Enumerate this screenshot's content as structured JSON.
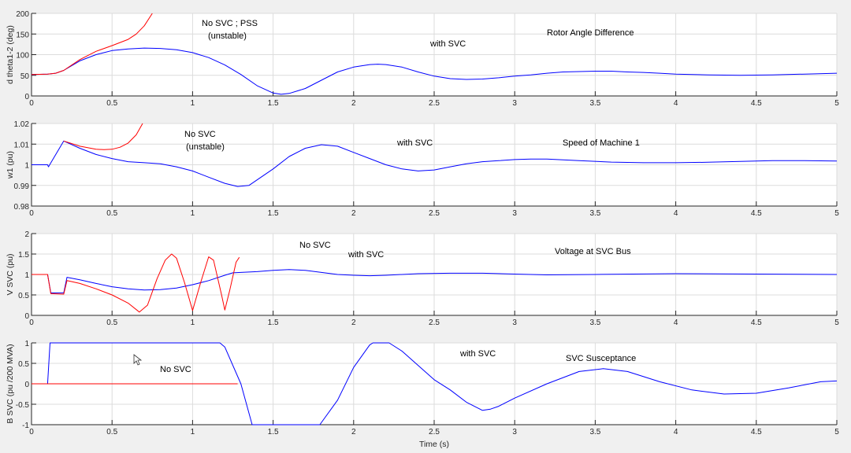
{
  "chart_data": [
    {
      "type": "line",
      "ylabel": "d theta1-2 (deg)",
      "xlim": [
        0,
        5
      ],
      "ylim": [
        0,
        200
      ],
      "xticks": [
        "0",
        "0.5",
        "1",
        "1.5",
        "2",
        "2.5",
        "3",
        "3.5",
        "4",
        "4.5",
        "5"
      ],
      "yticks": [
        "0",
        "50",
        "100",
        "150",
        "200"
      ],
      "grid": true,
      "annotations": [
        "No SVC ;  PSS",
        "(unstable)",
        "with SVC",
        "Rotor Angle Difference"
      ],
      "series": [
        {
          "color": "#0000ff",
          "x": [
            0,
            0.1,
            0.15,
            0.2,
            0.3,
            0.4,
            0.5,
            0.6,
            0.7,
            0.8,
            0.9,
            1.0,
            1.1,
            1.2,
            1.3,
            1.4,
            1.5,
            1.55,
            1.6,
            1.7,
            1.8,
            1.9,
            2.0,
            2.1,
            2.15,
            2.2,
            2.3,
            2.4,
            2.5,
            2.6,
            2.7,
            2.8,
            2.9,
            3.0,
            3.1,
            3.2,
            3.3,
            3.4,
            3.5,
            3.6,
            3.7,
            3.8,
            3.9,
            4.0,
            4.2,
            4.4,
            4.6,
            4.8,
            5.0
          ],
          "y": [
            52,
            53,
            55,
            62,
            85,
            100,
            110,
            114,
            116,
            115,
            112,
            105,
            93,
            75,
            52,
            25,
            7,
            4,
            6,
            18,
            38,
            58,
            70,
            76,
            77,
            76,
            70,
            58,
            48,
            42,
            40,
            41,
            44,
            48,
            51,
            55,
            58,
            59,
            60,
            60,
            58,
            57,
            55,
            53,
            51,
            50,
            51,
            53,
            55
          ]
        },
        {
          "color": "#ff0000",
          "x": [
            0,
            0.1,
            0.15,
            0.2,
            0.3,
            0.4,
            0.5,
            0.6,
            0.65,
            0.7,
            0.75
          ],
          "y": [
            52,
            53,
            55,
            62,
            88,
            108,
            122,
            137,
            150,
            170,
            200
          ]
        }
      ]
    },
    {
      "type": "line",
      "ylabel": "w1 (pu)",
      "xlim": [
        0,
        5
      ],
      "ylim": [
        0.98,
        1.02
      ],
      "xticks": [
        "0",
        "0.5",
        "1",
        "1.5",
        "2",
        "2.5",
        "3",
        "3.5",
        "4",
        "4.5",
        "5"
      ],
      "yticks": [
        "0.98",
        "0.99",
        "1",
        "1.01",
        "1.02"
      ],
      "grid": true,
      "annotations": [
        "No SVC",
        "(unstable)",
        "with SVC",
        "Speed of Machine 1"
      ],
      "series": [
        {
          "color": "#0000ff",
          "x": [
            0,
            0.1,
            0.105,
            0.2,
            0.3,
            0.4,
            0.5,
            0.6,
            0.7,
            0.8,
            0.9,
            1.0,
            1.1,
            1.2,
            1.28,
            1.35,
            1.5,
            1.6,
            1.7,
            1.8,
            1.9,
            2.0,
            2.1,
            2.2,
            2.3,
            2.4,
            2.5,
            2.6,
            2.7,
            2.8,
            2.9,
            3.0,
            3.1,
            3.2,
            3.4,
            3.6,
            3.8,
            4.0,
            4.2,
            4.4,
            4.6,
            4.8,
            5.0
          ],
          "y": [
            1.0,
            1.0,
            0.999,
            1.0115,
            1.008,
            1.005,
            1.003,
            1.0015,
            1.001,
            1.0005,
            0.999,
            0.997,
            0.994,
            0.991,
            0.9895,
            0.99,
            0.998,
            1.004,
            1.008,
            1.0097,
            1.009,
            1.006,
            1.003,
            1.0,
            0.998,
            0.997,
            0.9975,
            0.999,
            1.0005,
            1.0015,
            1.002,
            1.0025,
            1.0028,
            1.0028,
            1.002,
            1.0013,
            1.001,
            1.001,
            1.0012,
            1.0016,
            1.002,
            1.002,
            1.0018
          ]
        },
        {
          "color": "#ff0000",
          "x": [
            0.2,
            0.3,
            0.4,
            0.45,
            0.5,
            0.55,
            0.6,
            0.65,
            0.69
          ],
          "y": [
            1.0115,
            1.009,
            1.0075,
            1.0073,
            1.0075,
            1.0085,
            1.0105,
            1.0145,
            1.02
          ]
        }
      ]
    },
    {
      "type": "line",
      "ylabel": "V SVC (pu)",
      "xlim": [
        0,
        5
      ],
      "ylim": [
        0,
        2
      ],
      "xticks": [
        "0",
        "0.5",
        "1",
        "1.5",
        "2",
        "2.5",
        "3",
        "3.5",
        "4",
        "4.5",
        "5"
      ],
      "yticks": [
        "0",
        "0.5",
        "1",
        "1.5",
        "2"
      ],
      "grid": true,
      "annotations": [
        "No SVC",
        "with SVC",
        "Voltage at  SVC Bus"
      ],
      "series": [
        {
          "color": "#0000ff",
          "x": [
            0,
            0.1,
            0.12,
            0.2,
            0.22,
            0.3,
            0.4,
            0.5,
            0.6,
            0.7,
            0.8,
            0.9,
            1.0,
            1.1,
            1.2,
            1.25,
            1.3,
            1.4,
            1.5,
            1.6,
            1.7,
            1.8,
            1.9,
            2.0,
            2.1,
            2.2,
            2.4,
            2.6,
            2.8,
            3.0,
            3.2,
            3.5,
            4.0,
            4.5,
            5.0
          ],
          "y": [
            1.0,
            1.0,
            0.55,
            0.55,
            0.93,
            0.87,
            0.78,
            0.7,
            0.65,
            0.62,
            0.63,
            0.67,
            0.75,
            0.85,
            0.98,
            1.04,
            1.05,
            1.07,
            1.1,
            1.12,
            1.1,
            1.05,
            1.0,
            0.98,
            0.97,
            0.98,
            1.02,
            1.03,
            1.03,
            1.01,
            0.99,
            1.0,
            1.02,
            1.01,
            1.0
          ]
        },
        {
          "color": "#ff0000",
          "x": [
            0,
            0.1,
            0.12,
            0.2,
            0.22,
            0.3,
            0.4,
            0.5,
            0.6,
            0.67,
            0.72,
            0.78,
            0.83,
            0.87,
            0.9,
            0.95,
            1.0,
            1.05,
            1.1,
            1.13,
            1.18,
            1.2,
            1.23,
            1.27,
            1.29
          ],
          "y": [
            1.0,
            1.0,
            0.53,
            0.52,
            0.85,
            0.78,
            0.65,
            0.5,
            0.3,
            0.08,
            0.25,
            0.9,
            1.35,
            1.5,
            1.4,
            0.8,
            0.12,
            0.8,
            1.43,
            1.35,
            0.5,
            0.13,
            0.6,
            1.3,
            1.42
          ]
        }
      ]
    },
    {
      "type": "line",
      "ylabel": "B SVC (pu /200 MVA)",
      "xlabel": "Time (s)",
      "xlim": [
        0,
        5
      ],
      "ylim": [
        -1,
        1
      ],
      "xticks": [
        "0",
        "0.5",
        "1",
        "1.5",
        "2",
        "2.5",
        "3",
        "3.5",
        "4",
        "4.5",
        "5"
      ],
      "yticks": [
        "-1",
        "-0.5",
        "0",
        "0.5",
        "1"
      ],
      "grid": true,
      "annotations": [
        "No SVC",
        "with SVC",
        "SVC Susceptance"
      ],
      "series": [
        {
          "color": "#0000ff",
          "x": [
            0,
            0.1,
            0.115,
            1.17,
            1.2,
            1.3,
            1.37,
            1.79,
            1.9,
            2.0,
            2.1,
            2.12,
            2.22,
            2.3,
            2.4,
            2.5,
            2.6,
            2.7,
            2.8,
            2.85,
            2.9,
            3.0,
            3.2,
            3.4,
            3.55,
            3.7,
            3.9,
            4.1,
            4.3,
            4.5,
            4.7,
            4.9,
            5.0
          ],
          "y": [
            0,
            0,
            1,
            1,
            0.9,
            0,
            -1,
            -1,
            -0.4,
            0.4,
            0.95,
            1,
            1,
            0.8,
            0.45,
            0.1,
            -0.15,
            -0.45,
            -0.65,
            -0.62,
            -0.55,
            -0.35,
            0.0,
            0.3,
            0.37,
            0.3,
            0.05,
            -0.15,
            -0.25,
            -0.23,
            -0.1,
            0.05,
            0.07
          ]
        },
        {
          "color": "#ff0000",
          "x": [
            0,
            1.28
          ],
          "y": [
            0,
            0
          ]
        }
      ]
    }
  ]
}
